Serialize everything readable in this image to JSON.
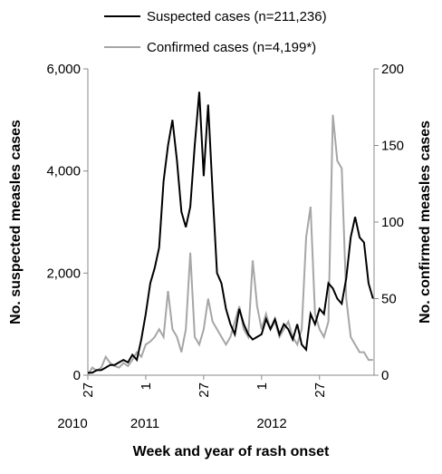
{
  "chart_data": {
    "type": "line",
    "x_label": "Week and year of rash onset",
    "y_label": "No. suspected measles cases",
    "y2_label": "No. confirmed measles cases",
    "year_labels": [
      "2010",
      "2011",
      "2012"
    ],
    "x": [
      0,
      2,
      4,
      6,
      8,
      10,
      12,
      14,
      16,
      18,
      20,
      22,
      24,
      26,
      28,
      30,
      32,
      34,
      36,
      38,
      40,
      42,
      44,
      46,
      48,
      50,
      52,
      54,
      56,
      58,
      60,
      62,
      64,
      66,
      68,
      70,
      72,
      74,
      76,
      78,
      80,
      82,
      84,
      86,
      88,
      90,
      92,
      94,
      96,
      98,
      100,
      102,
      104,
      106,
      108,
      110,
      112,
      114,
      116,
      118,
      120,
      122,
      124,
      126,
      128
    ],
    "xlim": [
      0,
      128.5
    ],
    "xticks": [
      {
        "value": 0,
        "label": "27"
      },
      {
        "value": 26,
        "label": "1"
      },
      {
        "value": 52,
        "label": "27"
      },
      {
        "value": 78,
        "label": "1"
      },
      {
        "value": 104,
        "label": "27"
      }
    ],
    "ylim": [
      0,
      6000
    ],
    "yticks": [
      {
        "value": 0,
        "label": "0"
      },
      {
        "value": 2000,
        "label": "2,000"
      },
      {
        "value": 4000,
        "label": "4,000"
      },
      {
        "value": 6000,
        "label": "6,000"
      }
    ],
    "y2lim": [
      0,
      200
    ],
    "y2ticks": [
      0,
      50,
      100,
      150,
      200
    ],
    "grid": false,
    "legend": "top",
    "series": [
      {
        "name": "Suspected cases (n=211,236)",
        "color": "#000000",
        "values": [
          50,
          50,
          100,
          100,
          150,
          200,
          200,
          250,
          300,
          250,
          400,
          300,
          700,
          1200,
          1800,
          2100,
          2500,
          3800,
          4500,
          5000,
          4200,
          3200,
          2900,
          3300,
          4500,
          5550,
          3900,
          5300,
          3600,
          2000,
          1800,
          1300,
          1000,
          800,
          1300,
          1000,
          800,
          700,
          750,
          800,
          1100,
          900,
          1100,
          800,
          1000,
          900,
          700,
          1000,
          600,
          500,
          1200,
          1000,
          1300,
          1200,
          1800,
          1700,
          1500,
          1400,
          1900,
          2700,
          3100,
          2700,
          2600,
          1800,
          1500
        ]
      },
      {
        "name": "Confirmed cases (n=4,199*)",
        "color": "#a6a6a6",
        "axis": "y2",
        "values": [
          0,
          5,
          3,
          5,
          12,
          8,
          6,
          5,
          8,
          6,
          10,
          15,
          12,
          20,
          22,
          25,
          30,
          25,
          55,
          30,
          25,
          15,
          30,
          80,
          25,
          20,
          30,
          50,
          35,
          30,
          25,
          20,
          25,
          35,
          45,
          30,
          25,
          75,
          45,
          30,
          40,
          30,
          35,
          25,
          30,
          35,
          25,
          20,
          30,
          90,
          110,
          40,
          30,
          25,
          35,
          170,
          140,
          135,
          50,
          25,
          20,
          15,
          15,
          10,
          10
        ]
      }
    ]
  }
}
